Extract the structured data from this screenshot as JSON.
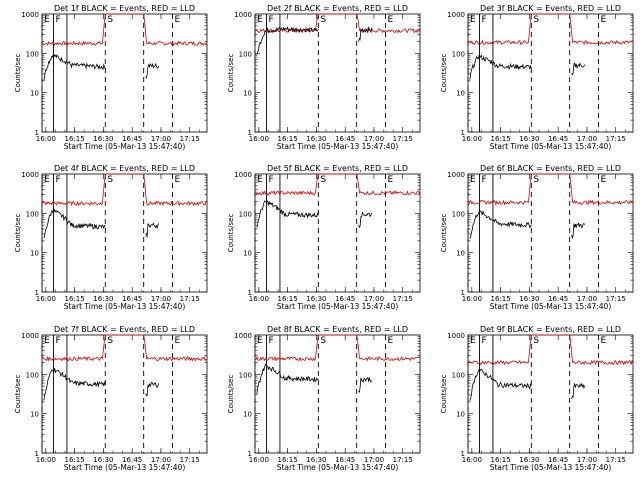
{
  "chart_data": {
    "type": "line",
    "yscale": "log",
    "ylim": [
      1,
      1000
    ],
    "ylabel": "Counts/sec",
    "xlabel": "Start Time (05-Mar-13 15:47:40)",
    "xlim": [
      "15:58",
      "17:24"
    ],
    "x_ticks": [
      "16:00",
      "16:15",
      "16:30",
      "16:45",
      "17:00",
      "17:15"
    ],
    "y_ticks": [
      "1",
      "10",
      "100",
      "1000"
    ],
    "colors": {
      "events": "#000000",
      "lld": "#dd0000",
      "axes": "#000000"
    },
    "markers": [
      {
        "label": "E",
        "time": "15:58",
        "style": "dashed"
      },
      {
        "label": "F",
        "time": "16:04",
        "style": "solid"
      },
      {
        "label": "",
        "time": "16:11",
        "style": "solid"
      },
      {
        "label": "S",
        "time": "16:31",
        "style": "dashed"
      },
      {
        "label": "",
        "time": "16:51",
        "style": "dashed"
      },
      {
        "label": "E",
        "time": "17:06",
        "style": "dashed"
      }
    ],
    "panels": [
      {
        "title": "Det 1f BLACK = Events, RED = LLD",
        "lld_base": 180,
        "lld_high": 1000,
        "events_start": 40,
        "events_peak": 90,
        "events_mid": 50,
        "events_end": 45,
        "events_after": 48
      },
      {
        "title": "Det 2f BLACK = Events, RED = LLD",
        "lld_base": 380,
        "lld_high": 1000,
        "events_start": 150,
        "events_peak": 380,
        "events_mid": 420,
        "events_end": 380,
        "events_after": 400
      },
      {
        "title": "Det 3f BLACK = Events, RED = LLD",
        "lld_base": 190,
        "lld_high": 1000,
        "events_start": 40,
        "events_peak": 85,
        "events_mid": 48,
        "events_end": 45,
        "events_after": 50
      },
      {
        "title": "Det 4f BLACK = Events, RED = LLD",
        "lld_base": 180,
        "lld_high": 1000,
        "events_start": 40,
        "events_peak": 120,
        "events_mid": 50,
        "events_end": 45,
        "events_after": 50
      },
      {
        "title": "Det 5f BLACK = Events, RED = LLD",
        "lld_base": 330,
        "lld_high": 1000,
        "events_start": 80,
        "events_peak": 200,
        "events_mid": 95,
        "events_end": 90,
        "events_after": 95
      },
      {
        "title": "Det 6f BLACK = Events, RED = LLD",
        "lld_base": 190,
        "lld_high": 1000,
        "events_start": 40,
        "events_peak": 110,
        "events_mid": 55,
        "events_end": 50,
        "events_after": 50
      },
      {
        "title": "Det 7f BLACK = Events, RED = LLD",
        "lld_base": 250,
        "lld_high": 1000,
        "events_start": 40,
        "events_peak": 140,
        "events_mid": 60,
        "events_end": 55,
        "events_after": 55
      },
      {
        "title": "Det 8f BLACK = Events, RED = LLD",
        "lld_base": 250,
        "lld_high": 1000,
        "events_start": 60,
        "events_peak": 170,
        "events_mid": 80,
        "events_end": 75,
        "events_after": 75
      },
      {
        "title": "Det 9f BLACK = Events, RED = LLD",
        "lld_base": 200,
        "lld_high": 1000,
        "events_start": 40,
        "events_peak": 130,
        "events_mid": 55,
        "events_end": 50,
        "events_after": 50
      }
    ]
  }
}
